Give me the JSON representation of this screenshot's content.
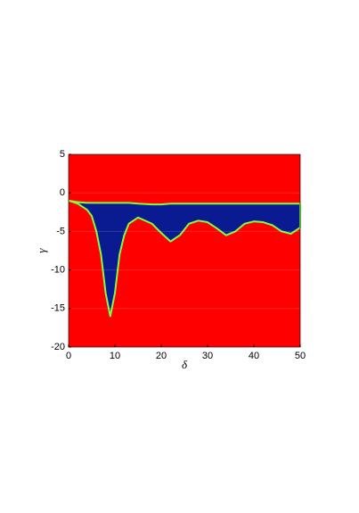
{
  "chart_data": {
    "type": "region",
    "xlabel": "δ",
    "ylabel": "γ",
    "xlim": [
      0,
      50
    ],
    "ylim": [
      -20,
      5
    ],
    "xticks": [
      0,
      10,
      20,
      30,
      40,
      50
    ],
    "yticks": [
      -20,
      -15,
      -10,
      -5,
      0,
      5
    ],
    "grid": true,
    "background": "#ff0000",
    "color": "#0a1a90",
    "edge_color": "#7fff40",
    "x": [
      0,
      2,
      4,
      5,
      6,
      7,
      8,
      9,
      10,
      11,
      12,
      13,
      15,
      18,
      20,
      22,
      24,
      26,
      28,
      30,
      32,
      34,
      36,
      38,
      40,
      42,
      44,
      46,
      48,
      50
    ],
    "upper": [
      -1,
      -1.2,
      -1.3,
      -1.3,
      -1.3,
      -1.3,
      -1.3,
      -1.3,
      -1.3,
      -1.3,
      -1.3,
      -1.3,
      -1.4,
      -1.5,
      -1.5,
      -1.4,
      -1.4,
      -1.4,
      -1.4,
      -1.4,
      -1.4,
      -1.4,
      -1.4,
      -1.4,
      -1.4,
      -1.4,
      -1.4,
      -1.4,
      -1.4,
      -1.4
    ],
    "lower": [
      -1,
      -1.4,
      -2.2,
      -3,
      -5,
      -8,
      -13,
      -16,
      -13,
      -8,
      -5.5,
      -4,
      -3.2,
      -4,
      -5.2,
      -6.3,
      -5.5,
      -4,
      -3.6,
      -3.8,
      -4.6,
      -5.5,
      -5,
      -4,
      -3.7,
      -3.8,
      -4.2,
      -5,
      -5.3,
      -4.5
    ]
  }
}
